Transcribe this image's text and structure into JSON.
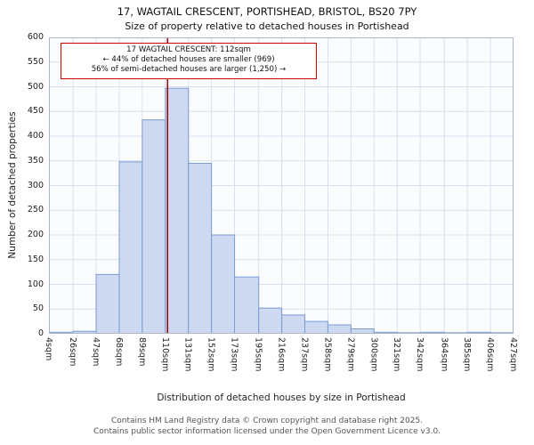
{
  "header": {
    "title": "17, WAGTAIL CRESCENT, PORTISHEAD, BRISTOL, BS20 7PY",
    "subtitle": "Size of property relative to detached houses in Portishead"
  },
  "chart_data": {
    "type": "bar",
    "title": "17, WAGTAIL CRESCENT, PORTISHEAD, BRISTOL, BS20 7PY",
    "subtitle": "Size of property relative to detached houses in Portishead",
    "xlabel": "Distribution of detached houses by size in Portishead",
    "ylabel": "Number of detached properties",
    "ylim": [
      0,
      600
    ],
    "ytick_step": 50,
    "bin_edges_sqm": [
      4,
      26,
      47,
      68,
      89,
      110,
      131,
      152,
      173,
      195,
      216,
      237,
      258,
      279,
      300,
      321,
      342,
      364,
      385,
      406,
      427
    ],
    "categories": [
      "4sqm",
      "26sqm",
      "47sqm",
      "68sqm",
      "89sqm",
      "110sqm",
      "131sqm",
      "152sqm",
      "173sqm",
      "195sqm",
      "216sqm",
      "237sqm",
      "258sqm",
      "279sqm",
      "300sqm",
      "321sqm",
      "342sqm",
      "364sqm",
      "385sqm",
      "406sqm",
      "427sqm"
    ],
    "values": [
      3,
      5,
      120,
      348,
      433,
      497,
      345,
      200,
      115,
      52,
      38,
      25,
      18,
      10,
      3,
      2,
      3,
      2,
      3,
      2
    ],
    "grid": true,
    "legend": "none",
    "marker": {
      "value_sqm": 112
    },
    "annotation": {
      "lines": [
        "17 WAGTAIL CRESCENT: 112sqm",
        "← 44% of detached houses are smaller (969)",
        "56% of semi-detached houses are larger (1,250) →"
      ]
    },
    "colors": {
      "bar_fill": "#ccd9f1",
      "bar_stroke": "#7b9bd2",
      "grid": "#d8dfee",
      "marker": "#990000",
      "axis": "#aab4c8",
      "annotation_border": "#cc0000"
    }
  },
  "footer": {
    "line1": "Contains HM Land Registry data © Crown copyright and database right 2025.",
    "line2": "Contains public sector information licensed under the Open Government Licence v3.0."
  }
}
